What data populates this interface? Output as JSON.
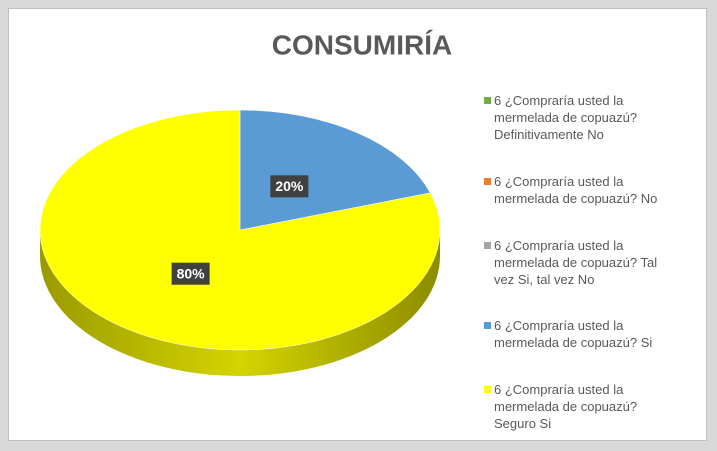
{
  "chart_data": {
    "type": "pie",
    "title": "CONSUMIRÍA",
    "categories": [
      "6 ¿Compraría usted la mermelada de copuazú? Definitivamente No",
      "6 ¿Compraría usted la mermelada de copuazú? No",
      "6 ¿Compraría usted la mermelada de copuazú? Tal vez Si, tal vez No",
      "6 ¿Compraría usted la mermelada de copuazú? Si",
      "6 ¿Compraría usted la mermelada de copuazú? Seguro Si"
    ],
    "values": [
      0,
      0,
      0,
      20,
      80
    ],
    "value_labels": [
      null,
      null,
      null,
      "20%",
      "80%"
    ],
    "colors": [
      "#70ad47",
      "#ed7d31",
      "#a5a5a5",
      "#5b9bd5",
      "#ffff00"
    ],
    "legend": "right"
  }
}
